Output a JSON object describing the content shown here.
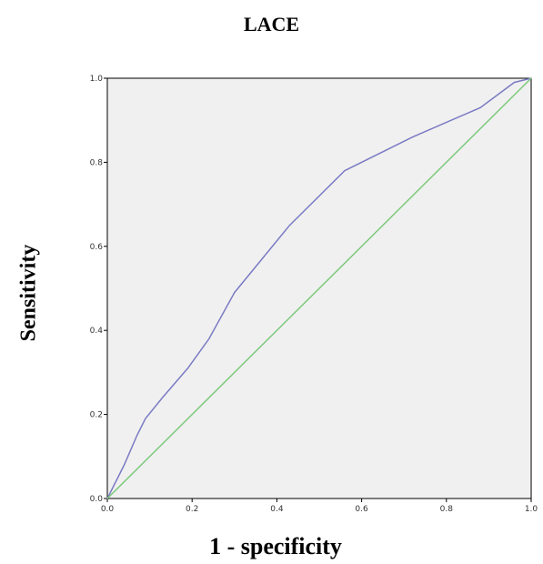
{
  "chart_data": {
    "type": "line",
    "title": "LACE",
    "xlabel": "1 - specificity",
    "ylabel": "Sensitivity",
    "xlim": [
      0,
      1
    ],
    "ylim": [
      0,
      1
    ],
    "xticks": [
      "0.0",
      "0.2",
      "0.4",
      "0.6",
      "0.8",
      "1.0"
    ],
    "yticks": [
      "0.0",
      "0.2",
      "0.4",
      "0.6",
      "0.8",
      "1.0"
    ],
    "grid": false,
    "series": [
      {
        "color": "#7b7bc4",
        "x": [
          0.0,
          0.02,
          0.04,
          0.07,
          0.09,
          0.13,
          0.19,
          0.24,
          0.3,
          0.43,
          0.56,
          0.72,
          0.88,
          0.96,
          1.0
        ],
        "y": [
          0.0,
          0.04,
          0.08,
          0.15,
          0.19,
          0.24,
          0.31,
          0.38,
          0.49,
          0.65,
          0.78,
          0.86,
          0.93,
          0.99,
          1.0
        ]
      },
      {
        "color": "#7dc97d",
        "x": [
          0.0,
          1.0
        ],
        "y": [
          0.0,
          1.0
        ]
      }
    ],
    "colors": {
      "plot_background": "#f0f0f0",
      "axis": "#000000"
    }
  }
}
